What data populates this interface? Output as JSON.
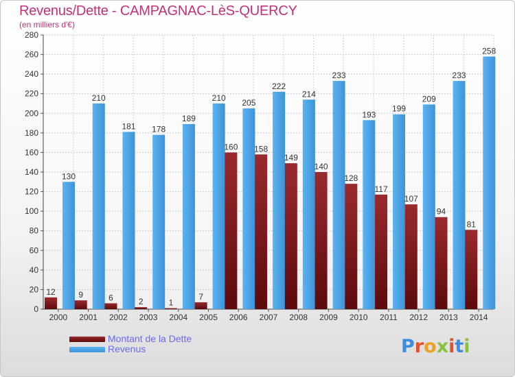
{
  "header": {
    "title": "Revenus/Dette - CAMPAGNAC-LèS-QUERCY",
    "subtitle": "(en milliers d'€)"
  },
  "chart_data": {
    "type": "bar",
    "categories": [
      "2000",
      "2001",
      "2002",
      "2003",
      "2004",
      "2005",
      "2006",
      "2007",
      "2008",
      "2009",
      "2010",
      "2011",
      "2012",
      "2013",
      "2014"
    ],
    "series": [
      {
        "name": "Montant de la Dette",
        "color": "#7a1518",
        "values": [
          12,
          9,
          6,
          2,
          1,
          7,
          160,
          158,
          149,
          140,
          128,
          117,
          107,
          94,
          81
        ]
      },
      {
        "name": "Revenus",
        "color": "#4aa3e6",
        "values": [
          130,
          210,
          181,
          178,
          189,
          210,
          205,
          222,
          214,
          233,
          193,
          199,
          209,
          233,
          258
        ]
      }
    ],
    "ylim": [
      0,
      280
    ],
    "yticks": [
      0,
      20,
      40,
      60,
      80,
      100,
      120,
      140,
      160,
      180,
      200,
      220,
      240,
      260,
      280
    ],
    "grid": true,
    "legend_position": "bottom-left"
  },
  "legend": {
    "items": [
      {
        "label": "Montant de la Dette",
        "color": "#7a1518"
      },
      {
        "label": "Revenus",
        "color": "#4aa3e6"
      }
    ]
  },
  "logo": {
    "text": "Proxiti",
    "letter_colors": [
      "#3b8de0",
      "#e0522a",
      "#f0a020",
      "#8ac23c",
      "#e0522a",
      "#3b8de0",
      "#8ac23c"
    ]
  }
}
